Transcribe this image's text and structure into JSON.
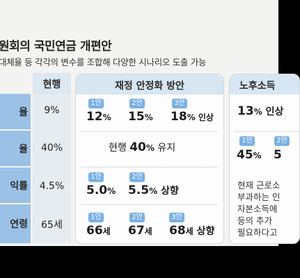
{
  "title": "원회의 국민연금 개편안",
  "subtitle": "대체율 등 각각의 변수를 조합해 다양한 시나리오 도출 가능",
  "columns": {
    "current": "현행",
    "stability": "재정 안정화 방안",
    "income": "노후소득"
  },
  "rows": [
    {
      "label": "율",
      "current": "9%"
    },
    {
      "label": "율",
      "current": "40%"
    },
    {
      "label": "익률",
      "current": "4.5%"
    },
    {
      "label": "연령",
      "current": "65세"
    }
  ],
  "stability": {
    "row1": [
      {
        "tag": "1안",
        "num": "12",
        "unit": "%",
        "suffix": ""
      },
      {
        "tag": "2안",
        "num": "15",
        "unit": "%",
        "suffix": ""
      },
      {
        "tag": "3안",
        "num": "18",
        "unit": "%",
        "suffix": " 인상"
      }
    ],
    "row2": {
      "prefix": "현행 ",
      "num": "40",
      "unit": "%",
      "suffix": " 유지"
    },
    "row3": [
      {
        "tag": "1안",
        "num": "5.0",
        "unit": "%",
        "suffix": ""
      },
      {
        "tag": "2안",
        "num": "5.5",
        "unit": "%",
        "suffix": " 상향"
      }
    ],
    "row4": [
      {
        "tag": "1안",
        "num": "66",
        "unit": "세",
        "suffix": ""
      },
      {
        "tag": "2안",
        "num": "67",
        "unit": "세",
        "suffix": ""
      },
      {
        "tag": "3안",
        "num": "68",
        "unit": "세",
        "suffix": " 상향"
      }
    ]
  },
  "income": {
    "row1": {
      "num": "13",
      "unit": "%",
      "suffix": " 인상"
    },
    "row2": [
      {
        "tag": "1안",
        "num": "45",
        "unit": "%"
      },
      {
        "tag": "2안",
        "num": "5",
        "unit": ""
      }
    ],
    "note_lines": [
      "현재 근로소",
      "부과하는 인",
      "자본소득에",
      "등의 추가 ",
      "필요하다고"
    ]
  },
  "colors": {
    "label_column": "#9cc1e6",
    "header": "#d7e6f3",
    "pill": "#7ab0e4"
  }
}
